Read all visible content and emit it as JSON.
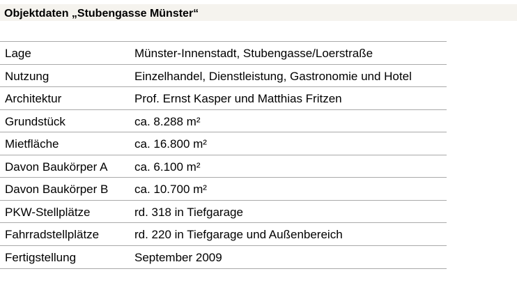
{
  "title": "Objektdaten „Stubengasse Münster“",
  "rows": [
    {
      "label": "Lage",
      "value": "Münster-Innenstadt, Stubengasse/Loerstraße"
    },
    {
      "label": "Nutzung",
      "value": "Einzelhandel, Dienstleistung, Gastronomie und Hotel"
    },
    {
      "label": "Architektur",
      "value": "Prof. Ernst Kasper und Matthias Fritzen"
    },
    {
      "label": "Grundstück",
      "value": "ca. 8.288 m²"
    },
    {
      "label": "Mietfläche",
      "value": "ca. 16.800 m²"
    },
    {
      "label": "Davon Baukörper A",
      "value": "ca. 6.100 m²"
    },
    {
      "label": "Davon Baukörper B",
      "value": "ca. 10.700 m²"
    },
    {
      "label": "PKW-Stellplätze",
      "value": "rd. 318 in Tiefgarage"
    },
    {
      "label": "Fahrradstellplätze",
      "value": "rd. 220 in Tiefgarage und Außenbereich"
    },
    {
      "label": "Fertigstellung",
      "value": "September 2009"
    }
  ]
}
